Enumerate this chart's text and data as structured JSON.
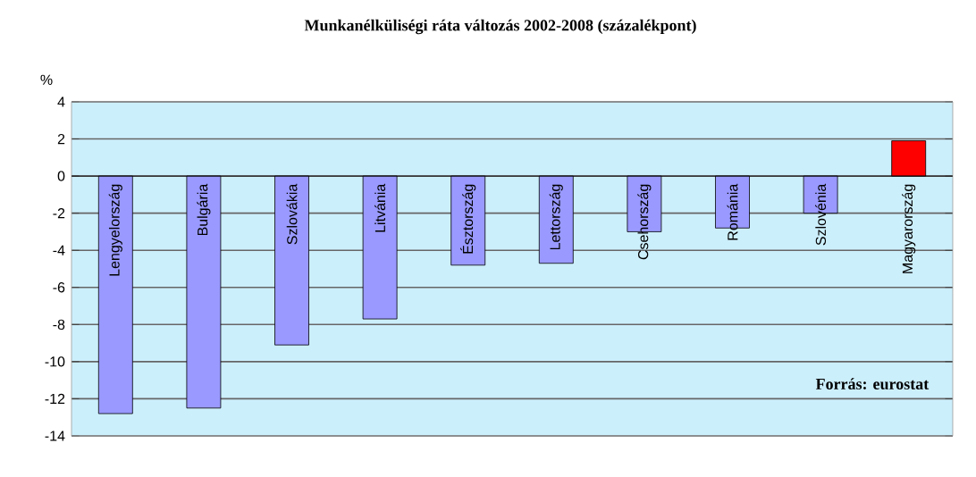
{
  "chart_data": {
    "type": "bar",
    "title": "Munkanélküliségi ráta változás 2002-2008 (százalékpont)",
    "ylabel": "%",
    "categories": [
      "Lengyelország",
      "Bulgária",
      "Szlovákia",
      "Litvánia",
      "Észtország",
      "Lettország",
      "Csehország",
      "Románia",
      "Szlovénia",
      "Magyarország"
    ],
    "values": [
      -12.8,
      -12.5,
      -9.1,
      -7.7,
      -4.8,
      -4.7,
      -3.0,
      -2.8,
      -2.0,
      1.9
    ],
    "colors": [
      "#9999ff",
      "#9999ff",
      "#9999ff",
      "#9999ff",
      "#9999ff",
      "#9999ff",
      "#9999ff",
      "#9999ff",
      "#9999ff",
      "#ff0000"
    ],
    "ylim": [
      -14,
      4
    ],
    "yticks": [
      -14,
      -12,
      -10,
      -8,
      -6,
      -4,
      -2,
      0,
      2,
      4
    ],
    "grid": "y",
    "annotations": [
      "Forrás: eurostat"
    ]
  }
}
